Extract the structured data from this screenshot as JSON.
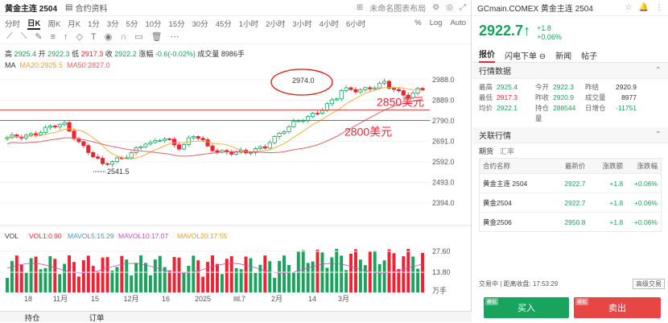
{
  "header": {
    "title": "黄金主连 2504",
    "doc": "合约资料",
    "note": "未命名图表布局"
  },
  "timeframes": {
    "items": [
      "分时",
      "日K",
      "周K",
      "月K",
      "1分",
      "3分",
      "5分",
      "10分",
      "15分",
      "30分",
      "45分",
      "1小时",
      "2小时",
      "3小时",
      "4小时",
      "6小时"
    ],
    "active": "日K",
    "right": [
      "%",
      "Log",
      "Auto"
    ]
  },
  "info": {
    "high_l": "高",
    "high": "2925.4",
    "open_l": "开",
    "open": "2922.3",
    "low_l": "低",
    "low": "2917.3",
    "close_l": "收",
    "close": "2922.2",
    "chg_l": "涨幅",
    "chg": "-0.6(-0.02%)",
    "vol_l": "成交量",
    "vol": "8986手"
  },
  "ma": {
    "label": "MA",
    "ma20": "MA20:2925.5",
    "ma50": "MA50:2827.0"
  },
  "chart_data": {
    "type": "candlestick",
    "y_ticks": [
      "2988.0",
      "2889.0",
      "2790.0",
      "2691.0",
      "2592.0",
      "2493.0",
      "2394.0"
    ],
    "x_ticks": [
      "18",
      "11月",
      "15",
      "12月",
      "16",
      "2025",
      "17",
      "2月",
      "14",
      "3月"
    ],
    "annotations": {
      "high": "2974.0",
      "low": "2541.5",
      "line1": "2850美元",
      "line2": "2800美元"
    },
    "volume": {
      "label": "VOL",
      "vol": "VOL1:0.90",
      "mavol5": "MAVOL5:15.29",
      "mavol10": "MAVOL10:17.07",
      "mavol20": "MAVOL20:17.55",
      "ticks": [
        "27.60",
        "13.80"
      ],
      "unit": "万手"
    }
  },
  "bottom_tabs": [
    "持仓",
    "订单"
  ],
  "right": {
    "title": "GCmain.COMEX 黄金主连 2504",
    "price": "2922.7",
    "arrow": "↑",
    "chg1": "+1.8",
    "chg2": "+0.06%",
    "tabs": [
      "报价",
      "闪电下单",
      "新闻",
      "帖子"
    ],
    "quote_title": "行情数据",
    "quote": [
      [
        "最高",
        "2925.4",
        "今开",
        "2922.3",
        "昨结",
        "2920.9"
      ],
      [
        "最低",
        "2917.3",
        "昨收",
        "2920.9",
        "成交量",
        "8977"
      ],
      [
        "均价",
        "2922.1",
        "持仓量",
        "288544",
        "日增仓",
        "-11751"
      ]
    ],
    "related_title": "关联行情",
    "related_tabs": [
      "期货",
      "汇率"
    ],
    "table_head": [
      "合约名称",
      "最新价",
      "涨跌额",
      "涨跌幅"
    ],
    "table_rows": [
      [
        "黄金主连 2504",
        "2922.7",
        "+1.8",
        "+0.06%"
      ],
      [
        "黄金2504",
        "2922.7",
        "+1.8",
        "+0.06%"
      ],
      [
        "黄金2506",
        "2950.8",
        "+1.8",
        "+0.06%"
      ]
    ],
    "status": "交易中 | 距离收盘:",
    "status_time": "17:53:29",
    "adv": "高级交易",
    "buy": "买入",
    "sell": "卖出",
    "buy_tag": "模拟",
    "sell_tag": "模拟"
  }
}
